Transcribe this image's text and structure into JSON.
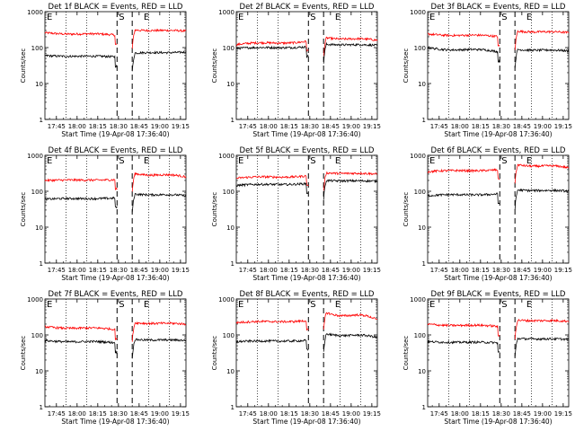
{
  "chart_data": {
    "type": "line",
    "layout": "3x3 grid",
    "ylabel": "Counts/sec",
    "xlabel": "Start Time (19-Apr-08 17:36:40)",
    "yscale": "log",
    "ylim": [
      1,
      1000
    ],
    "y_ticks": [
      "1",
      "10",
      "100",
      "1000"
    ],
    "x_ticks": [
      "17:45",
      "18:00",
      "18:15",
      "18:30",
      "18:45",
      "19:00",
      "19:15"
    ],
    "x_range": [
      "17:36:40",
      "19:19:00"
    ],
    "markers": [
      {
        "label": "E",
        "time": "17:36:40",
        "style": "dotted"
      },
      {
        "label": "S",
        "time": "18:29:00",
        "style": "dashed"
      },
      {
        "label": "E",
        "time": "18:47:00",
        "style": "dotted"
      }
    ],
    "dashed_lines": [
      "18:29:00",
      "18:40:00"
    ],
    "dotted_lines": [
      "17:52:00",
      "18:07:00",
      "18:52:00",
      "19:07:00"
    ],
    "series_colors": {
      "events": "#000000",
      "lld": "#ff0000"
    },
    "panels": [
      {
        "title": "Det 1f BLACK = Events, RED = LLD",
        "events": [
          60,
          55,
          70,
          75
        ],
        "lld": [
          260,
          220,
          310,
          290
        ]
      },
      {
        "title": "Det 2f BLACK = Events, RED = LLD",
        "events": [
          95,
          105,
          125,
          115
        ],
        "lld": [
          120,
          150,
          190,
          160
        ]
      },
      {
        "title": "Det 3f BLACK = Events, RED = LLD",
        "events": [
          100,
          75,
          90,
          80
        ],
        "lld": [
          240,
          200,
          290,
          260
        ]
      },
      {
        "title": "Det 4f BLACK = Events, RED = LLD",
        "events": [
          60,
          65,
          85,
          75
        ],
        "lld": [
          200,
          210,
          320,
          250
        ]
      },
      {
        "title": "Det 5f BLACK = Events, RED = LLD",
        "events": [
          145,
          165,
          200,
          190
        ],
        "lld": [
          230,
          270,
          330,
          300
        ]
      },
      {
        "title": "Det 6f BLACK = Events, RED = LLD",
        "events": [
          75,
          85,
          110,
          100
        ],
        "lld": [
          350,
          400,
          560,
          450
        ]
      },
      {
        "title": "Det 7f BLACK = Events, RED = LLD",
        "events": [
          70,
          60,
          75,
          70
        ],
        "lld": [
          170,
          140,
          220,
          200
        ]
      },
      {
        "title": "Det 8f BLACK = Events, RED = LLD",
        "events": [
          65,
          70,
          110,
          85
        ],
        "lld": [
          220,
          250,
          440,
          260
        ]
      },
      {
        "title": "Det 9f BLACK = Events, RED = LLD",
        "events": [
          65,
          60,
          80,
          75
        ],
        "lld": [
          200,
          170,
          260,
          240
        ]
      }
    ]
  }
}
